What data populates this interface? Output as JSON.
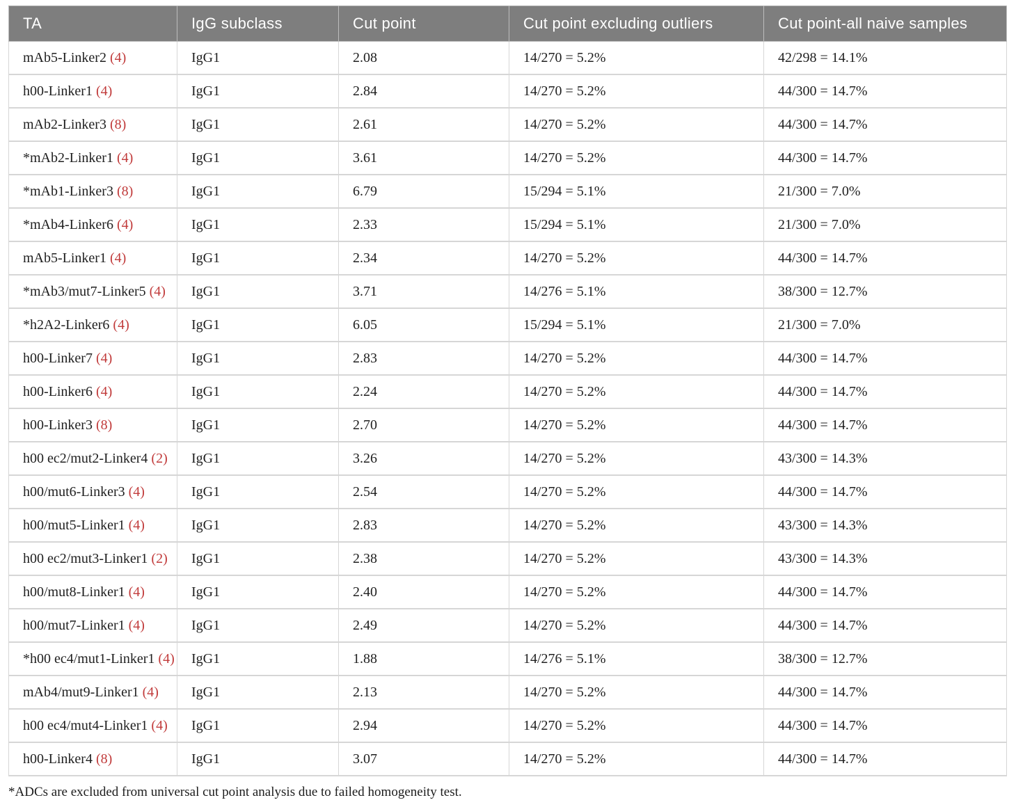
{
  "colors": {
    "header_bg": "#7e7e7e",
    "header_text": "#ffffff",
    "body_text": "#1f1f1f",
    "accent_red": "#c13b3b",
    "grid_line": "#d6d6d6"
  },
  "table": {
    "columns": [
      "TA",
      "IgG subclass",
      "Cut point",
      "Cut point excluding outliers",
      "Cut point-all naive samples"
    ],
    "rows": [
      {
        "ta": "mAb5-Linker2",
        "count": "(4)",
        "igg": "IgG1",
        "cut": "2.08",
        "excl": "14/270 = 5.2%",
        "naive": "42/298 = 14.1%"
      },
      {
        "ta": "h00-Linker1",
        "count": "(4)",
        "igg": "IgG1",
        "cut": "2.84",
        "excl": "14/270 = 5.2%",
        "naive": "44/300 = 14.7%"
      },
      {
        "ta": "mAb2-Linker3",
        "count": "(8)",
        "igg": "IgG1",
        "cut": "2.61",
        "excl": "14/270 = 5.2%",
        "naive": "44/300 = 14.7%"
      },
      {
        "ta": "*mAb2-Linker1",
        "count": "(4)",
        "igg": "IgG1",
        "cut": "3.61",
        "excl": "14/270 = 5.2%",
        "naive": "44/300 = 14.7%"
      },
      {
        "ta": "*mAb1-Linker3",
        "count": "(8)",
        "igg": "IgG1",
        "cut": "6.79",
        "excl": "15/294 = 5.1%",
        "naive": "21/300 = 7.0%"
      },
      {
        "ta": "*mAb4-Linker6",
        "count": "(4)",
        "igg": "IgG1",
        "cut": "2.33",
        "excl": "15/294 = 5.1%",
        "naive": "21/300 = 7.0%"
      },
      {
        "ta": "mAb5-Linker1",
        "count": "(4)",
        "igg": "IgG1",
        "cut": "2.34",
        "excl": "14/270 = 5.2%",
        "naive": "44/300 = 14.7%"
      },
      {
        "ta": "*mAb3/mut7-Linker5",
        "count": "(4)",
        "igg": "IgG1",
        "cut": "3.71",
        "excl": "14/276 = 5.1%",
        "naive": "38/300 = 12.7%"
      },
      {
        "ta": "*h2A2-Linker6",
        "count": "(4)",
        "igg": "IgG1",
        "cut": "6.05",
        "excl": "15/294 = 5.1%",
        "naive": "21/300 = 7.0%"
      },
      {
        "ta": "h00-Linker7",
        "count": "(4)",
        "igg": "IgG1",
        "cut": "2.83",
        "excl": "14/270 = 5.2%",
        "naive": "44/300 = 14.7%"
      },
      {
        "ta": "h00-Linker6",
        "count": "(4)",
        "igg": "IgG1",
        "cut": "2.24",
        "excl": "14/270 = 5.2%",
        "naive": "44/300 = 14.7%"
      },
      {
        "ta": "h00-Linker3",
        "count": "(8)",
        "igg": "IgG1",
        "cut": "2.70",
        "excl": "14/270 = 5.2%",
        "naive": "44/300 = 14.7%"
      },
      {
        "ta": "h00 ec2/mut2-Linker4",
        "count": "(2)",
        "igg": "IgG1",
        "cut": "3.26",
        "excl": "14/270 = 5.2%",
        "naive": "43/300 = 14.3%"
      },
      {
        "ta": "h00/mut6-Linker3",
        "count": "(4)",
        "igg": "IgG1",
        "cut": "2.54",
        "excl": "14/270 = 5.2%",
        "naive": "44/300 = 14.7%"
      },
      {
        "ta": "h00/mut5-Linker1",
        "count": "(4)",
        "igg": "IgG1",
        "cut": "2.83",
        "excl": "14/270 = 5.2%",
        "naive": "43/300 = 14.3%"
      },
      {
        "ta": "h00 ec2/mut3-Linker1",
        "count": "(2)",
        "igg": "IgG1",
        "cut": "2.38",
        "excl": "14/270 = 5.2%",
        "naive": "43/300 = 14.3%"
      },
      {
        "ta": "h00/mut8-Linker1",
        "count": "(4)",
        "igg": "IgG1",
        "cut": "2.40",
        "excl": "14/270 = 5.2%",
        "naive": "44/300 = 14.7%"
      },
      {
        "ta": "h00/mut7-Linker1",
        "count": "(4)",
        "igg": "IgG1",
        "cut": "2.49",
        "excl": "14/270 = 5.2%",
        "naive": "44/300 = 14.7%"
      },
      {
        "ta": "*h00 ec4/mut1-Linker1",
        "count": "(4)",
        "igg": "IgG1",
        "cut": "1.88",
        "excl": "14/276 = 5.1%",
        "naive": "38/300 = 12.7%"
      },
      {
        "ta": "mAb4/mut9-Linker1",
        "count": "(4)",
        "igg": "IgG1",
        "cut": "2.13",
        "excl": "14/270 = 5.2%",
        "naive": "44/300 = 14.7%"
      },
      {
        "ta": "h00 ec4/mut4-Linker1",
        "count": "(4)",
        "igg": "IgG1",
        "cut": "2.94",
        "excl": "14/270 = 5.2%",
        "naive": "44/300 = 14.7%"
      },
      {
        "ta": "h00-Linker4",
        "count": "(8)",
        "igg": "IgG1",
        "cut": "3.07",
        "excl": "14/270 = 5.2%",
        "naive": "44/300 = 14.7%"
      }
    ]
  },
  "footnote": "*ADCs are excluded from universal cut point analysis due to failed homogeneity test."
}
